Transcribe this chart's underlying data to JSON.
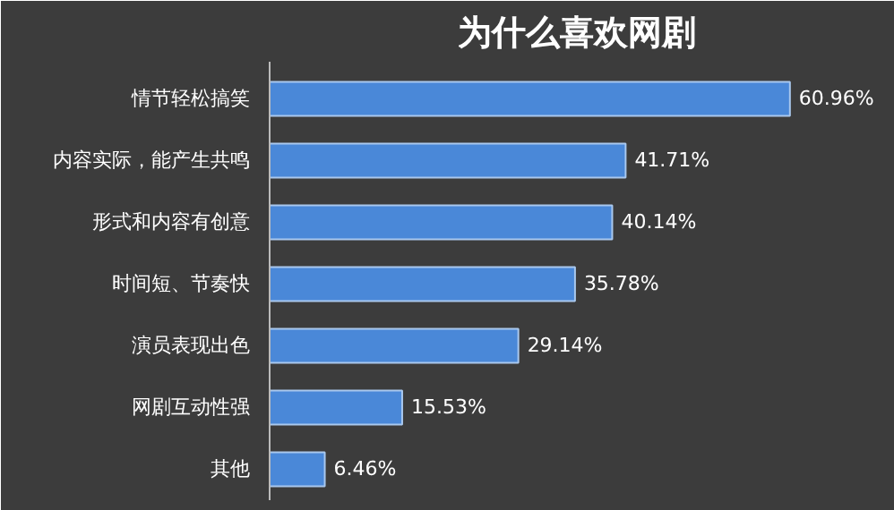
{
  "chart_data": {
    "type": "bar",
    "orientation": "horizontal",
    "title": "为什么喜欢网剧",
    "categories": [
      "情节轻松搞笑",
      "内容实际，能产生共鸣",
      "形式和内容有创意",
      "时间短、节奏快",
      "演员表现出色",
      "网剧互动性强",
      "其他"
    ],
    "values": [
      60.96,
      41.71,
      40.14,
      35.78,
      29.14,
      15.53,
      6.46
    ],
    "value_labels": [
      "60.96%",
      "41.71%",
      "40.14%",
      "35.78%",
      "29.14%",
      "15.53%",
      "6.46%"
    ],
    "color": "#4a88d8",
    "xlim": [
      0,
      72
    ]
  }
}
